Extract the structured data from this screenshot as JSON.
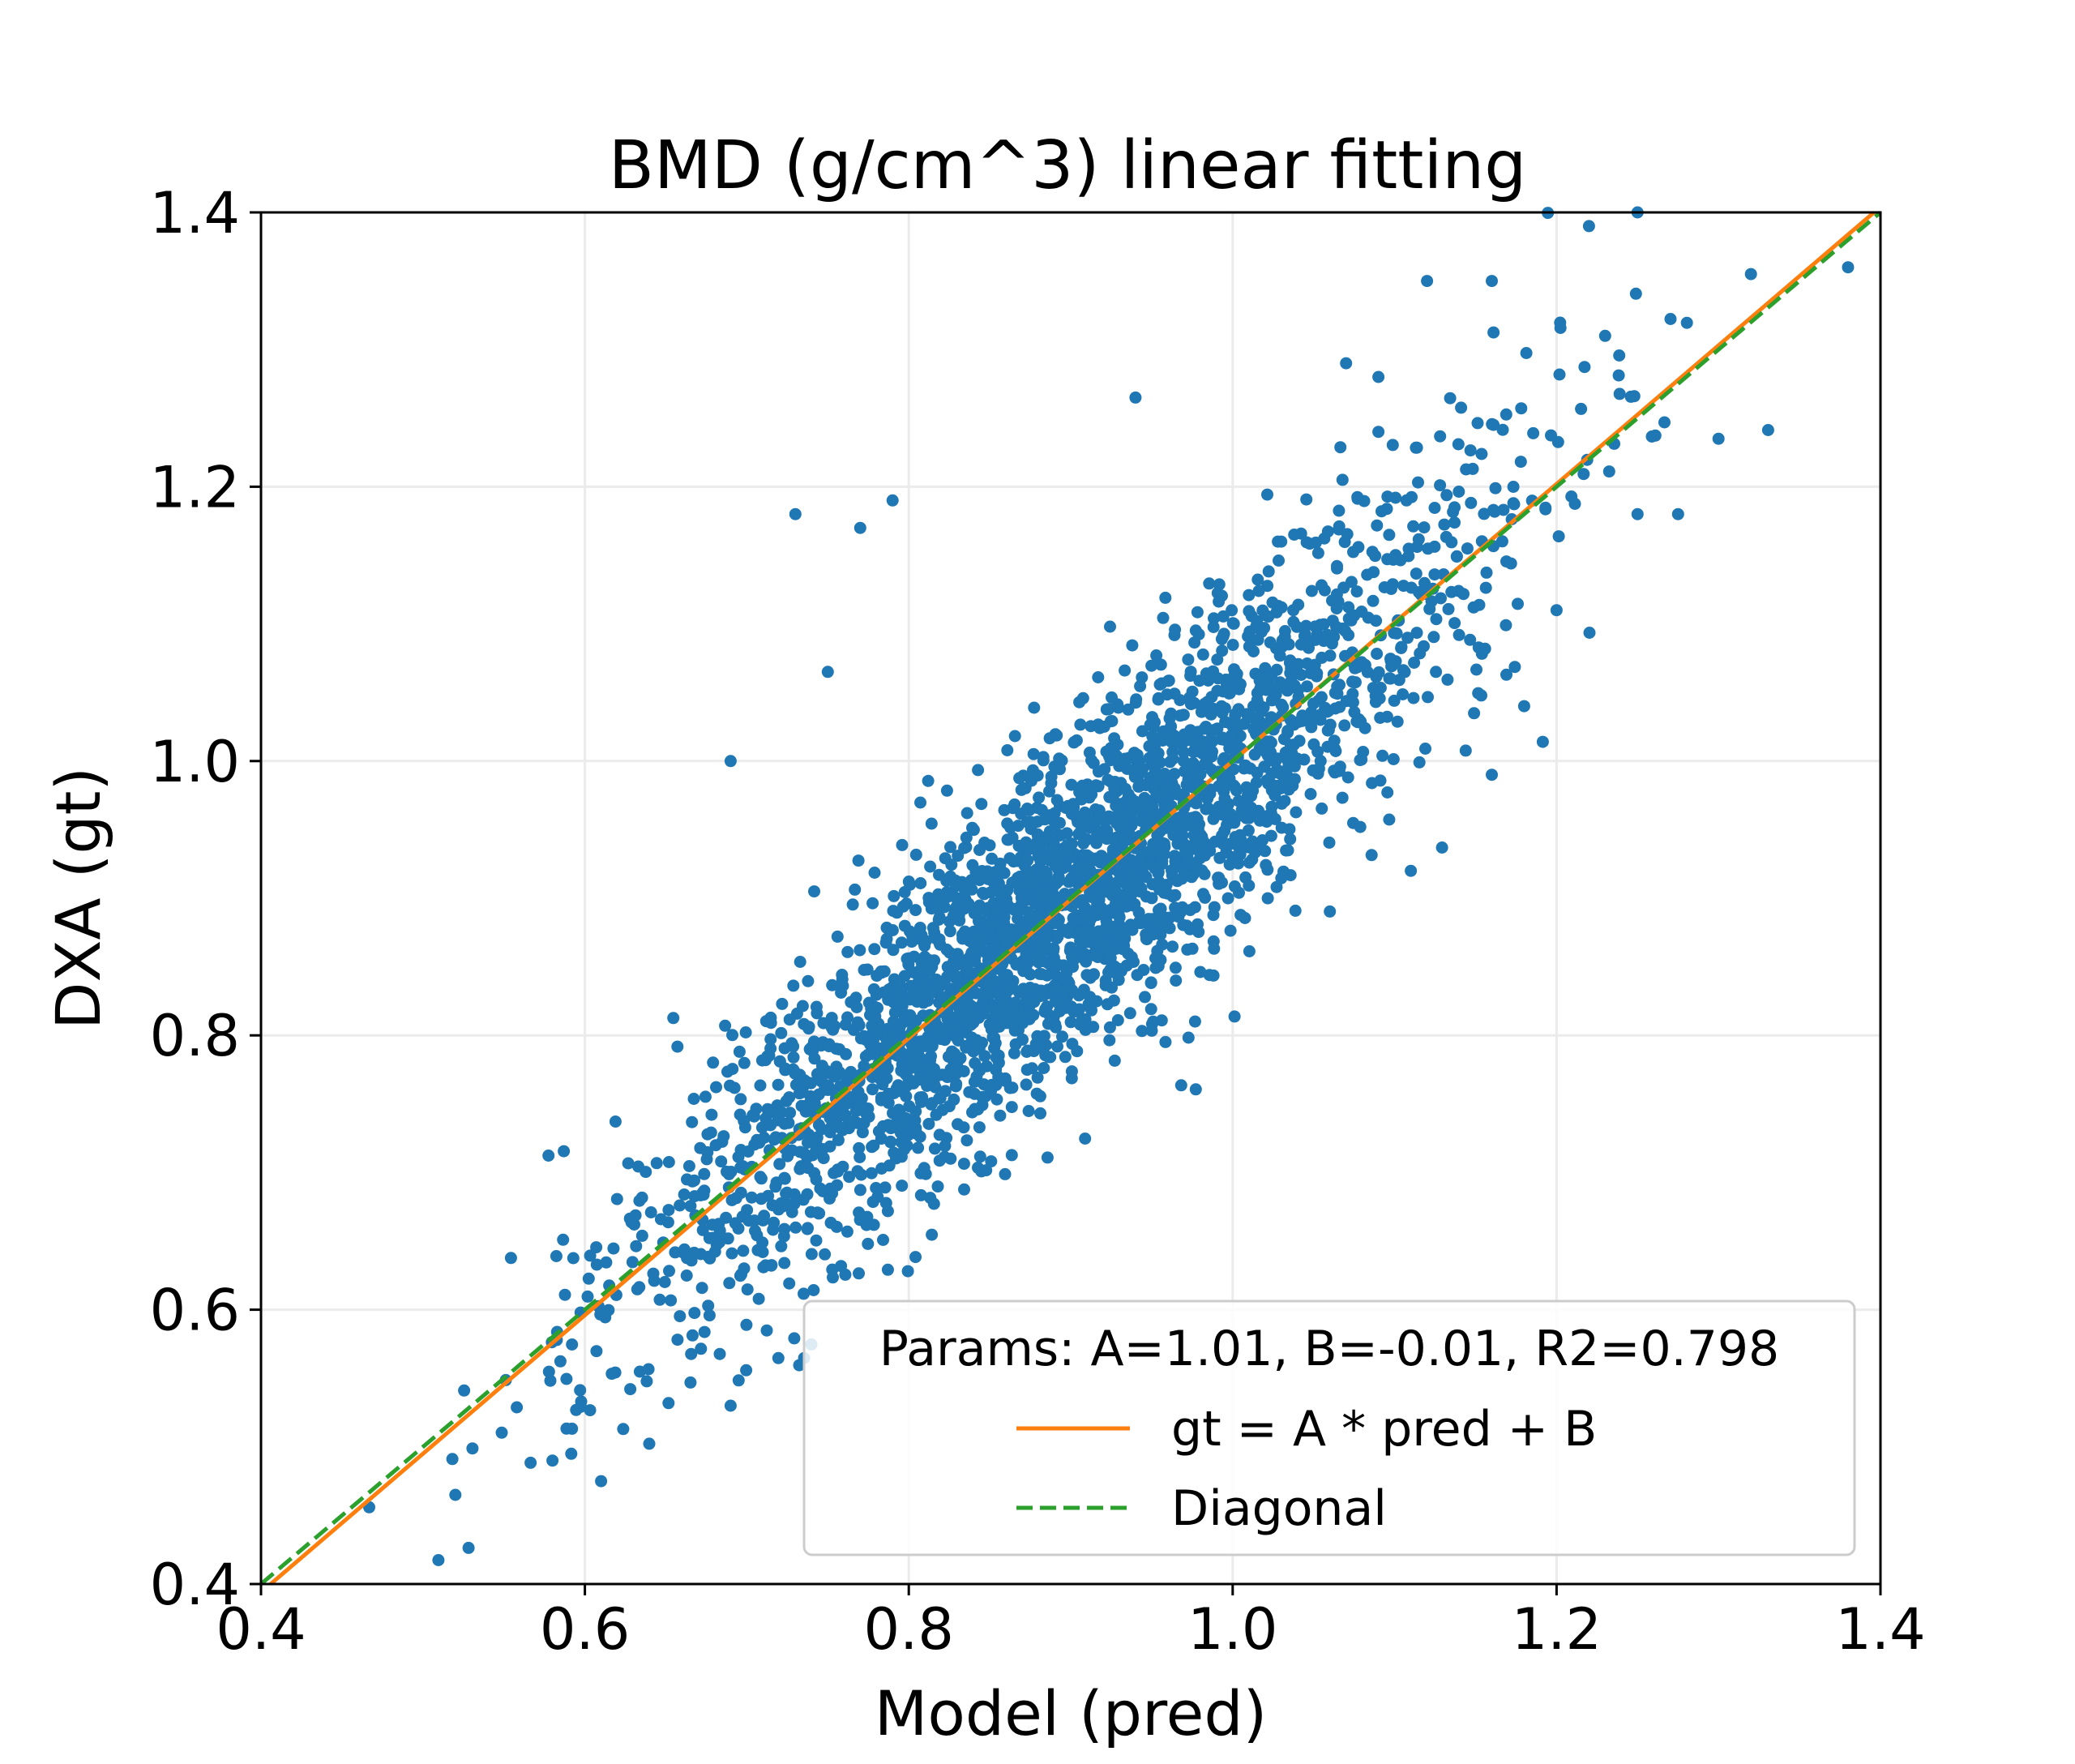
{
  "chart_data": {
    "type": "scatter",
    "title": "BMD (g/cm^3) linear fitting",
    "xlabel": "Model (pred)",
    "ylabel": "DXA (gt)",
    "xlim": [
      0.4,
      1.4
    ],
    "ylim": [
      0.4,
      1.4
    ],
    "xticks": [
      "0.4",
      "0.6",
      "0.8",
      "1.0",
      "1.2",
      "1.4"
    ],
    "yticks": [
      "0.4",
      "0.6",
      "0.8",
      "1.0",
      "1.2",
      "1.4"
    ],
    "xtick_values": [
      0.4,
      0.6,
      0.8,
      1.0,
      1.2,
      1.4
    ],
    "ytick_values": [
      0.4,
      0.6,
      0.8,
      1.0,
      1.2,
      1.4
    ],
    "grid": true,
    "colors": {
      "points": "#1f77b4",
      "fit": "#ff7f0e",
      "diagonal": "#2ca02c",
      "grid": "#ebebeb"
    },
    "fit": {
      "A": 1.01,
      "B": -0.01,
      "R2": 0.798
    },
    "legend": {
      "position": "lower-right",
      "title": "Params: A=1.01, B=-0.01, R2=0.798",
      "entries": [
        "gt = A * pred + B",
        "Diagonal"
      ]
    },
    "scatter": {
      "n_points": 3000,
      "x_mean": 0.9,
      "x_sd": 0.125,
      "residual_sd": 0.06,
      "outliers": [
        [
          0.52,
          0.465
        ],
        [
          0.61,
          0.475
        ],
        [
          0.58,
          0.49
        ],
        [
          0.69,
          0.53
        ],
        [
          0.75,
          1.065
        ],
        [
          0.69,
          1.0
        ],
        [
          0.73,
          1.18
        ],
        [
          0.79,
          1.19
        ],
        [
          0.77,
          1.17
        ],
        [
          0.94,
          1.265
        ],
        [
          1.07,
          1.29
        ],
        [
          1.09,
          1.28
        ],
        [
          1.12,
          1.35
        ],
        [
          1.16,
          1.35
        ],
        [
          1.22,
          1.39
        ],
        [
          1.25,
          1.4
        ],
        [
          1.32,
          1.355
        ],
        [
          1.38,
          1.36
        ],
        [
          1.23,
          1.31
        ],
        [
          1.3,
          1.235
        ],
        [
          1.275,
          1.18
        ],
        [
          1.25,
          1.18
        ],
        [
          1.11,
          0.92
        ],
        [
          1.16,
          0.99
        ],
        [
          1.18,
          1.04
        ],
        [
          1.2,
          1.11
        ],
        [
          1.09,
          1.24
        ],
        [
          1.03,
          1.16
        ]
      ]
    }
  }
}
